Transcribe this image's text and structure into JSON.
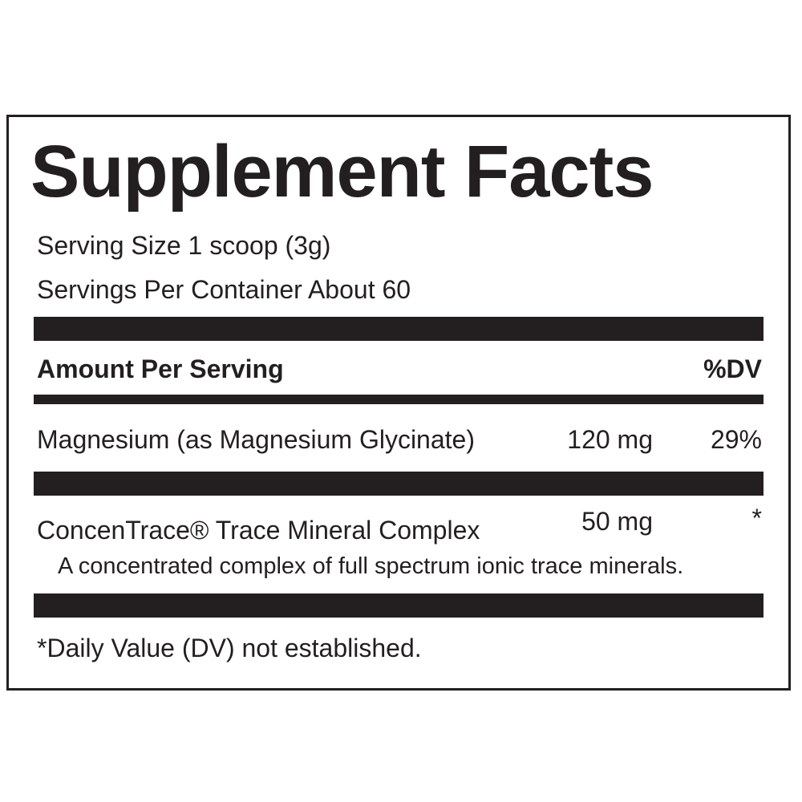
{
  "title": "Supplement Facts",
  "serving": [
    "Serving Size 1 scoop (3g)",
    "Servings Per Container About 60"
  ],
  "header": {
    "amount": "Amount Per Serving",
    "dv": "%DV"
  },
  "rows": [
    {
      "name": "Magnesium (as Magnesium Glycinate)",
      "amount": "120 mg",
      "dv": "29%"
    },
    {
      "name": "ConcenTrace® Trace Mineral Complex",
      "amount": "50 mg",
      "dv": "*",
      "description": "A concentrated complex of full spectrum ionic trace minerals."
    }
  ],
  "footnote": "*Daily Value (DV) not established."
}
